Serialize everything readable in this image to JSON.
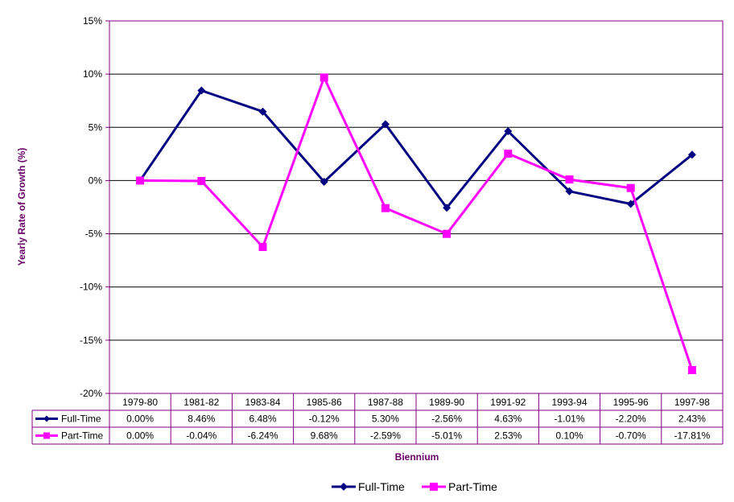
{
  "chart_data": {
    "type": "line",
    "categories": [
      "1979-80",
      "1981-82",
      "1983-84",
      "1985-86",
      "1987-88",
      "1989-90",
      "1991-92",
      "1993-94",
      "1995-96",
      "1997-98"
    ],
    "series": [
      {
        "name": "Full-Time",
        "color": "#000080",
        "marker": "diamond",
        "values": [
          0.0,
          8.46,
          6.48,
          -0.12,
          5.3,
          -2.56,
          4.63,
          -1.01,
          -2.2,
          2.43
        ],
        "labels": [
          "0.00%",
          "8.46%",
          "6.48%",
          "-0.12%",
          "5.30%",
          "-2.56%",
          "4.63%",
          "-1.01%",
          "-2.20%",
          "2.43%"
        ]
      },
      {
        "name": "Part-Time",
        "color": "#FF00FF",
        "marker": "square",
        "values": [
          0.0,
          -0.04,
          -6.24,
          9.68,
          -2.59,
          -5.01,
          2.53,
          0.1,
          -0.7,
          -17.81
        ],
        "labels": [
          "0.00%",
          "-0.04%",
          "-6.24%",
          "9.68%",
          "-2.59%",
          "-5.01%",
          "2.53%",
          "0.10%",
          "-0.70%",
          "-17.81%"
        ]
      }
    ],
    "ylim": [
      -20,
      15
    ],
    "yticks": [
      15,
      10,
      5,
      0,
      -5,
      -10,
      -15,
      -20
    ],
    "ytick_labels": [
      "15%",
      "10%",
      "5%",
      "0%",
      "-5%",
      "-10%",
      "-15%",
      "-20%"
    ],
    "xlabel": "Biennium",
    "ylabel": "Yearly Rate of Growth (%)",
    "grid": true,
    "legend_position": "bottom",
    "data_table": true
  },
  "colors": {
    "border": "#800080",
    "gridline": "#000000",
    "axis_title": "#660066"
  }
}
